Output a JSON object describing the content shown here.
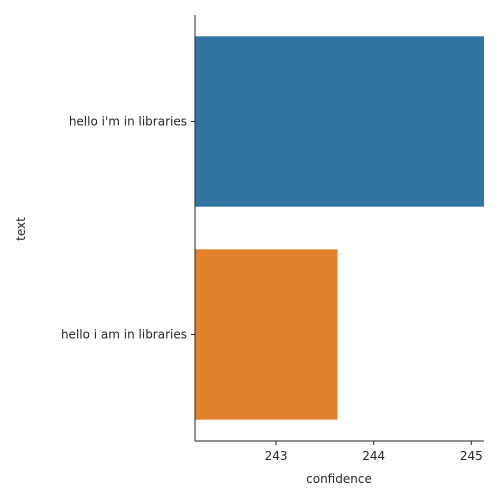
{
  "chart_data": {
    "type": "bar",
    "orientation": "horizontal",
    "categories": [
      "hello i'm in libraries",
      "hello i am in libraries"
    ],
    "values": [
      245.13,
      243.63
    ],
    "colors": [
      "#3274a1",
      "#e1812c"
    ],
    "xlabel": "confidence",
    "ylabel": "text",
    "xlim": [
      242.17,
      245.13
    ],
    "xticks": [
      243,
      244,
      245
    ],
    "xtick_labels": [
      "243",
      "244",
      "245"
    ],
    "grid": false,
    "spines": [
      "left",
      "bottom"
    ]
  }
}
